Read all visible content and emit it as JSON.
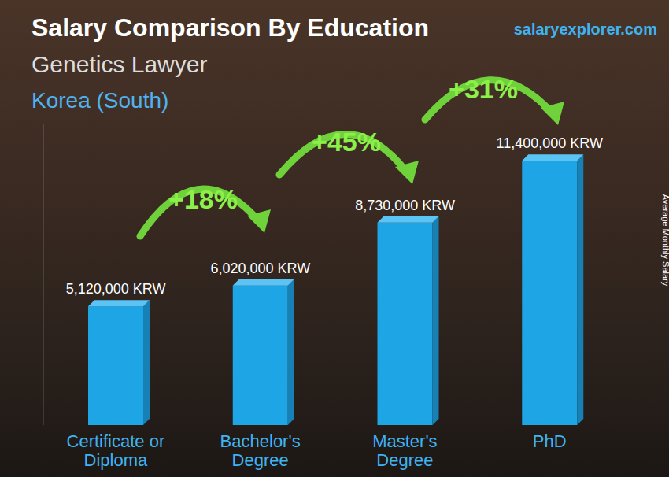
{
  "chart_data": {
    "type": "bar",
    "title": "Salary Comparison By Education",
    "subtitle": [
      "Genetics Lawyer",
      "Korea (South)"
    ],
    "source": "salaryexplorer.com",
    "y_label": "Average Monthly Salary",
    "categories": [
      "Certificate or Diploma",
      "Bachelor's Degree",
      "Master's Degree",
      "PhD"
    ],
    "values": [
      5120000,
      6020000,
      8730000,
      11400000
    ],
    "value_labels": [
      "5,120,000 KRW",
      "6,020,000 KRW",
      "8,730,000 KRW",
      "11,400,000 KRW"
    ],
    "annotations": [
      "+18%",
      "+45%",
      "+31%"
    ],
    "color": "#1ea5e6",
    "ylim": [
      0,
      13000000
    ],
    "grid": false,
    "data_labels": true,
    "tick_labels": "x"
  }
}
